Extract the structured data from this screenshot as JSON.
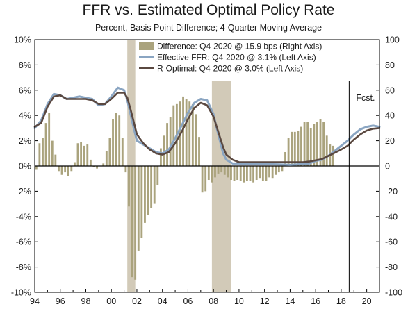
{
  "chart_data": {
    "type": "bar+line",
    "title": "FFR vs. Estimated Optimal Policy Rate",
    "subtitle": "Percent, Basis Point Difference; 4-Quarter Moving Average",
    "x_axis": {
      "range": [
        1994.0,
        2021.0
      ],
      "ticks": [
        1994,
        1996,
        1998,
        2000,
        2002,
        2004,
        2006,
        2008,
        2010,
        2012,
        2014,
        2016,
        2018,
        2020
      ],
      "tick_labels": [
        "94",
        "96",
        "98",
        "00",
        "02",
        "04",
        "06",
        "08",
        "10",
        "12",
        "14",
        "16",
        "18",
        "20"
      ]
    },
    "left_axis": {
      "range": [
        -10,
        10
      ],
      "ticks": [
        -10,
        -8,
        -6,
        -4,
        -2,
        0,
        2,
        4,
        6,
        8,
        10
      ],
      "tick_labels": [
        "-10%",
        "-8%",
        "-6%",
        "-4%",
        "-2%",
        "0%",
        "2%",
        "4%",
        "6%",
        "8%",
        "10%"
      ]
    },
    "right_axis": {
      "range": [
        -100,
        100
      ],
      "ticks": [
        -100,
        -80,
        -60,
        -40,
        -20,
        0,
        20,
        40,
        60,
        80,
        100
      ],
      "tick_labels": [
        "-100",
        "-80",
        "-60",
        "-40",
        "-20",
        "0",
        "20",
        "40",
        "60",
        "80",
        "100"
      ]
    },
    "recessions": [
      {
        "start": 2001.25,
        "end": 2001.875
      },
      {
        "start": 2007.875,
        "end": 2009.375
      }
    ],
    "forecast": {
      "x": 2018.625,
      "label": "Fcst."
    },
    "colors": {
      "difference": "#aaa37d",
      "effective_ffr": "#8aa5c2",
      "r_optimal": "#5a4840",
      "recession": "#d2cab8"
    },
    "legend": [
      {
        "key": "difference",
        "label": "Difference: Q4-2020 @ 15.9 bps (Right Axis)",
        "style": "bar"
      },
      {
        "key": "effective_ffr",
        "label": "Effective FFR: Q4-2020 @ 3.1% (Left Axis)",
        "style": "line"
      },
      {
        "key": "r_optimal",
        "label": "R-Optimal: Q4-2020 @ 3.0% (Left Axis)",
        "style": "line"
      }
    ],
    "legend_position": "top-right",
    "series": {
      "difference_bps": {
        "x_start": 1994.0,
        "step": 0.25,
        "values": [
          -3,
          18,
          22,
          34,
          42,
          20,
          9,
          -4,
          -7,
          -5,
          -8,
          -4,
          3,
          18,
          19,
          16,
          17,
          5,
          -1,
          -2,
          0,
          2,
          12,
          22,
          37,
          42,
          40,
          22,
          -5,
          -32,
          -88,
          -90,
          -67,
          -57,
          -45,
          -39,
          -33,
          -30,
          -15,
          14,
          24,
          34,
          39,
          48,
          49,
          51,
          55,
          53,
          51,
          49,
          41,
          23,
          -21,
          -20,
          -11,
          -13,
          -9,
          -6,
          -5,
          -7,
          -9,
          -11,
          -12,
          -11,
          -12,
          -13,
          -12,
          -12,
          -13,
          -11,
          -10,
          -12,
          -12,
          -9,
          -10,
          -7,
          -5,
          -4,
          11,
          22,
          27,
          27,
          28,
          31,
          35,
          35,
          30,
          33,
          35,
          37,
          35,
          24,
          17,
          16
        ]
      },
      "effective_ffr_pct": {
        "x": [
          1994.0,
          1994.5,
          1995.0,
          1995.5,
          1996.0,
          1996.5,
          1997.0,
          1997.5,
          1998.0,
          1998.5,
          1999.0,
          1999.5,
          2000.0,
          2000.5,
          2001.0,
          2001.25,
          2001.5,
          2001.75,
          2002.0,
          2002.5,
          2003.0,
          2003.5,
          2004.0,
          2004.5,
          2005.0,
          2005.5,
          2006.0,
          2006.5,
          2007.0,
          2007.5,
          2008.0,
          2008.25,
          2008.5,
          2008.75,
          2009.0,
          2009.5,
          2010.0,
          2011.0,
          2012.0,
          2013.0,
          2014.0,
          2015.0,
          2015.5,
          2016.0,
          2016.5,
          2017.0,
          2017.5,
          2018.0,
          2018.5,
          2019.0,
          2019.5,
          2020.0,
          2020.5,
          2021.0
        ],
        "y": [
          3.0,
          3.6,
          4.9,
          5.7,
          5.6,
          5.3,
          5.4,
          5.5,
          5.4,
          5.3,
          4.8,
          4.9,
          5.5,
          6.2,
          6.0,
          5.2,
          4.1,
          3.0,
          2.0,
          1.7,
          1.4,
          1.1,
          1.0,
          1.3,
          2.2,
          3.2,
          4.2,
          5.0,
          5.3,
          5.2,
          4.1,
          3.0,
          2.0,
          1.0,
          0.5,
          0.2,
          0.2,
          0.15,
          0.15,
          0.13,
          0.1,
          0.15,
          0.2,
          0.4,
          0.5,
          0.8,
          1.2,
          1.6,
          2.0,
          2.5,
          2.9,
          3.1,
          3.2,
          3.1
        ]
      },
      "r_optimal_pct": {
        "x": [
          1994.0,
          1994.5,
          1995.0,
          1995.5,
          1996.0,
          1996.5,
          1997.0,
          1997.5,
          1998.0,
          1998.5,
          1999.0,
          1999.5,
          2000.0,
          2000.5,
          2001.0,
          2001.25,
          2001.5,
          2001.75,
          2002.0,
          2002.5,
          2003.0,
          2003.5,
          2004.0,
          2004.5,
          2005.0,
          2005.5,
          2006.0,
          2006.5,
          2007.0,
          2007.5,
          2008.0,
          2008.25,
          2008.5,
          2008.75,
          2009.0,
          2009.5,
          2010.0,
          2011.0,
          2012.0,
          2013.0,
          2014.0,
          2015.0,
          2015.5,
          2016.0,
          2016.5,
          2017.0,
          2017.5,
          2018.0,
          2018.5,
          2019.0,
          2019.5,
          2020.0,
          2020.5,
          2021.0
        ],
        "y": [
          3.1,
          3.4,
          4.7,
          5.5,
          5.6,
          5.3,
          5.3,
          5.3,
          5.3,
          5.2,
          4.9,
          4.9,
          5.3,
          5.8,
          5.8,
          5.4,
          4.5,
          3.5,
          2.5,
          1.8,
          1.3,
          1.0,
          0.9,
          1.1,
          1.8,
          2.7,
          3.7,
          4.6,
          5.0,
          4.8,
          3.9,
          3.1,
          2.3,
          1.5,
          0.9,
          0.5,
          0.3,
          0.3,
          0.3,
          0.3,
          0.3,
          0.3,
          0.35,
          0.45,
          0.55,
          0.8,
          1.05,
          1.3,
          1.6,
          2.1,
          2.5,
          2.8,
          2.95,
          3.0
        ]
      }
    }
  }
}
